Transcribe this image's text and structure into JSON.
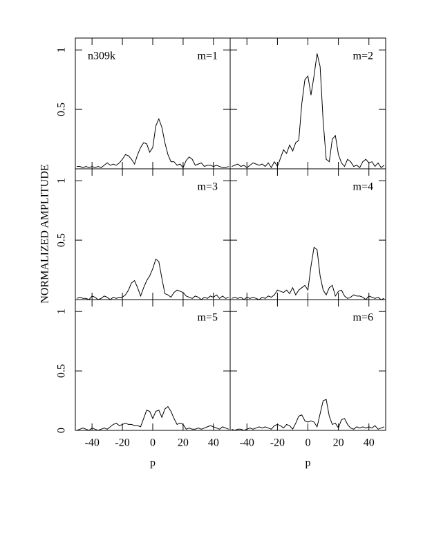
{
  "ylabel": "NORMALIZED AMPLITUDE",
  "chart_data": [
    {
      "type": "line",
      "title": "n309k",
      "label": "m=1",
      "xlim": [
        -51,
        51
      ],
      "ylim": [
        0,
        1.1
      ],
      "xticks": [
        -40,
        -20,
        0,
        20,
        40
      ],
      "yticks": [
        0.5,
        1
      ],
      "color": "#000000",
      "x": [
        -50,
        -48,
        -46,
        -44,
        -42,
        -40,
        -38,
        -36,
        -34,
        -32,
        -30,
        -28,
        -26,
        -24,
        -22,
        -20,
        -18,
        -16,
        -14,
        -12,
        -10,
        -8,
        -6,
        -4,
        -2,
        0,
        2,
        4,
        6,
        8,
        10,
        12,
        14,
        16,
        18,
        20,
        22,
        24,
        26,
        28,
        30,
        32,
        34,
        36,
        38,
        40,
        42,
        44,
        46,
        48,
        50
      ],
      "values": [
        0.02,
        0.02,
        0.01,
        0.02,
        0.01,
        0.02,
        0.01,
        0.02,
        0.01,
        0.03,
        0.05,
        0.03,
        0.04,
        0.03,
        0.05,
        0.08,
        0.12,
        0.11,
        0.08,
        0.04,
        0.12,
        0.18,
        0.22,
        0.21,
        0.14,
        0.18,
        0.36,
        0.42,
        0.35,
        0.22,
        0.12,
        0.06,
        0.06,
        0.03,
        0.04,
        0.01,
        0.07,
        0.1,
        0.08,
        0.03,
        0.04,
        0.05,
        0.02,
        0.03,
        0.03,
        0.02,
        0.03,
        0.02,
        0.01,
        0.01,
        0.02
      ]
    },
    {
      "type": "line",
      "label": "m=2",
      "xlim": [
        -51,
        51
      ],
      "ylim": [
        0,
        1.1
      ],
      "xticks": [
        -40,
        -20,
        0,
        20,
        40
      ],
      "yticks": [
        0.5,
        1
      ],
      "color": "#000000",
      "x": [
        -50,
        -48,
        -46,
        -44,
        -42,
        -40,
        -38,
        -36,
        -34,
        -32,
        -30,
        -28,
        -26,
        -24,
        -22,
        -20,
        -18,
        -16,
        -14,
        -12,
        -10,
        -8,
        -6,
        -4,
        -2,
        0,
        2,
        4,
        6,
        8,
        10,
        12,
        14,
        16,
        18,
        20,
        22,
        24,
        26,
        28,
        30,
        32,
        34,
        36,
        38,
        40,
        42,
        44,
        46,
        48,
        50
      ],
      "values": [
        0.02,
        0.03,
        0.04,
        0.02,
        0.03,
        0.01,
        0.03,
        0.05,
        0.04,
        0.03,
        0.04,
        0.02,
        0.05,
        0.01,
        0.06,
        0.02,
        0.09,
        0.16,
        0.13,
        0.2,
        0.15,
        0.22,
        0.24,
        0.55,
        0.75,
        0.78,
        0.62,
        0.78,
        0.97,
        0.86,
        0.4,
        0.08,
        0.06,
        0.25,
        0.28,
        0.12,
        0.05,
        0.02,
        0.08,
        0.06,
        0.02,
        0.03,
        0.01,
        0.06,
        0.08,
        0.05,
        0.06,
        0.02,
        0.05,
        0.01,
        0.03
      ]
    },
    {
      "type": "line",
      "label": "m=3",
      "xlim": [
        -51,
        51
      ],
      "ylim": [
        0,
        1.1
      ],
      "xticks": [
        -40,
        -20,
        0,
        20,
        40
      ],
      "yticks": [
        0.5,
        1
      ],
      "color": "#000000",
      "x": [
        -50,
        -48,
        -46,
        -44,
        -42,
        -40,
        -38,
        -36,
        -34,
        -32,
        -30,
        -28,
        -26,
        -24,
        -22,
        -20,
        -18,
        -16,
        -14,
        -12,
        -10,
        -8,
        -6,
        -4,
        -2,
        0,
        2,
        4,
        6,
        8,
        10,
        12,
        14,
        16,
        18,
        20,
        22,
        24,
        26,
        28,
        30,
        32,
        34,
        36,
        38,
        40,
        42,
        44,
        46,
        48,
        50
      ],
      "values": [
        0.01,
        0.02,
        0.01,
        0.01,
        0.0,
        0.03,
        0.02,
        0.0,
        0.01,
        0.03,
        0.02,
        0.0,
        0.02,
        0.01,
        0.02,
        0.02,
        0.04,
        0.08,
        0.14,
        0.16,
        0.1,
        0.03,
        0.1,
        0.16,
        0.2,
        0.26,
        0.34,
        0.32,
        0.18,
        0.05,
        0.04,
        0.02,
        0.06,
        0.08,
        0.07,
        0.06,
        0.03,
        0.02,
        0.01,
        0.03,
        0.02,
        0.0,
        0.02,
        0.01,
        0.03,
        0.02,
        0.04,
        0.01,
        0.03,
        0.01,
        0.02
      ]
    },
    {
      "type": "line",
      "label": "m=4",
      "xlim": [
        -51,
        51
      ],
      "ylim": [
        0,
        1.1
      ],
      "xticks": [
        -40,
        -20,
        0,
        20,
        40
      ],
      "yticks": [
        0.5,
        1
      ],
      "color": "#000000",
      "x": [
        -50,
        -48,
        -46,
        -44,
        -42,
        -40,
        -38,
        -36,
        -34,
        -32,
        -30,
        -28,
        -26,
        -24,
        -22,
        -20,
        -18,
        -16,
        -14,
        -12,
        -10,
        -8,
        -6,
        -4,
        -2,
        0,
        2,
        4,
        6,
        8,
        10,
        12,
        14,
        16,
        18,
        20,
        22,
        24,
        26,
        28,
        30,
        32,
        34,
        36,
        38,
        40,
        42,
        44,
        46,
        48,
        50
      ],
      "values": [
        0.01,
        0.02,
        0.01,
        0.02,
        0.0,
        0.02,
        0.01,
        0.02,
        0.01,
        0.0,
        0.02,
        0.01,
        0.03,
        0.02,
        0.04,
        0.08,
        0.07,
        0.06,
        0.08,
        0.05,
        0.1,
        0.04,
        0.08,
        0.1,
        0.12,
        0.08,
        0.28,
        0.44,
        0.42,
        0.2,
        0.08,
        0.04,
        0.1,
        0.12,
        0.03,
        0.07,
        0.08,
        0.03,
        0.01,
        0.02,
        0.04,
        0.03,
        0.03,
        0.02,
        0.0,
        0.03,
        0.02,
        0.01,
        0.02,
        0.0,
        0.01
      ]
    },
    {
      "type": "line",
      "label": "m=5",
      "xlabel": "p",
      "xlim": [
        -51,
        51
      ],
      "ylim": [
        0,
        1.1
      ],
      "xticks": [
        -40,
        -20,
        0,
        20,
        40
      ],
      "yticks": [
        0,
        0.5,
        1
      ],
      "color": "#000000",
      "x": [
        -50,
        -48,
        -46,
        -44,
        -42,
        -40,
        -38,
        -36,
        -34,
        -32,
        -30,
        -28,
        -26,
        -24,
        -22,
        -20,
        -18,
        -16,
        -14,
        -12,
        -10,
        -8,
        -6,
        -4,
        -2,
        0,
        2,
        4,
        6,
        8,
        10,
        12,
        14,
        16,
        18,
        20,
        22,
        24,
        26,
        28,
        30,
        32,
        34,
        36,
        38,
        40,
        42,
        44,
        46,
        48,
        50
      ],
      "values": [
        0.0,
        0.01,
        0.02,
        0.01,
        0.0,
        0.02,
        0.01,
        0.0,
        0.01,
        0.02,
        0.01,
        0.03,
        0.05,
        0.06,
        0.04,
        0.05,
        0.06,
        0.05,
        0.05,
        0.04,
        0.04,
        0.03,
        0.1,
        0.17,
        0.16,
        0.1,
        0.16,
        0.17,
        0.11,
        0.18,
        0.2,
        0.16,
        0.1,
        0.05,
        0.06,
        0.05,
        0.01,
        0.02,
        0.01,
        0.01,
        0.02,
        0.01,
        0.02,
        0.03,
        0.04,
        0.03,
        0.02,
        0.01,
        0.03,
        0.02,
        0.01
      ]
    },
    {
      "type": "line",
      "label": "m=6",
      "xlabel": "p",
      "xlim": [
        -51,
        51
      ],
      "ylim": [
        0,
        1.1
      ],
      "xticks": [
        -40,
        -20,
        0,
        20,
        40
      ],
      "yticks": [
        0,
        0.5,
        1
      ],
      "color": "#000000",
      "x": [
        -50,
        -48,
        -46,
        -44,
        -42,
        -40,
        -38,
        -36,
        -34,
        -32,
        -30,
        -28,
        -26,
        -24,
        -22,
        -20,
        -18,
        -16,
        -14,
        -12,
        -10,
        -8,
        -6,
        -4,
        -2,
        0,
        2,
        4,
        6,
        8,
        10,
        12,
        14,
        16,
        18,
        20,
        22,
        24,
        26,
        28,
        30,
        32,
        34,
        36,
        38,
        40,
        42,
        44,
        46,
        48,
        50
      ],
      "values": [
        0.01,
        0.0,
        0.01,
        0.01,
        0.0,
        0.01,
        0.02,
        0.01,
        0.02,
        0.03,
        0.02,
        0.03,
        0.02,
        0.01,
        0.04,
        0.05,
        0.04,
        0.02,
        0.05,
        0.04,
        0.01,
        0.06,
        0.12,
        0.13,
        0.08,
        0.07,
        0.08,
        0.07,
        0.03,
        0.14,
        0.25,
        0.26,
        0.12,
        0.05,
        0.06,
        0.02,
        0.09,
        0.1,
        0.05,
        0.02,
        0.01,
        0.03,
        0.02,
        0.03,
        0.02,
        0.03,
        0.02,
        0.04,
        0.01,
        0.02,
        0.03
      ]
    }
  ]
}
